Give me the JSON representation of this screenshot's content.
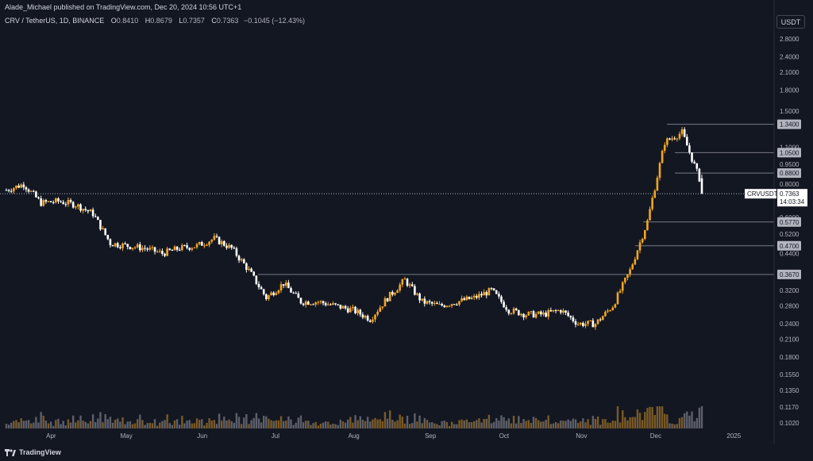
{
  "header": {
    "published_by": "Alade_Michael published on TradingView.com, Dec 20, 2024 10:56 UTC+1"
  },
  "legend": {
    "symbol": "CRV / TetherUS, 1D, BINANCE",
    "open_label": "O",
    "open": "0.8410",
    "high_label": "H",
    "high": "0.8679",
    "low_label": "L",
    "low": "0.7357",
    "close_label": "C",
    "close": "0.7363",
    "change": "−0.1045 (−12.43%)"
  },
  "currency_button": "USDT",
  "footer": {
    "brand": "TradingView"
  },
  "colors": {
    "background": "#131722",
    "up": "#f5a623",
    "down": "#ffffff",
    "level_line": "#787b86",
    "tag_bg": "#b2b5be",
    "current_price_bg": "#ffffff"
  },
  "chart_data": {
    "type": "candlestick",
    "scale": "log",
    "y_tick_labels": [
      "2.8000",
      "2.4000",
      "2.1000",
      "1.8000",
      "1.5000",
      "1.1000",
      "0.9500",
      "0.8000",
      "0.6000",
      "0.5200",
      "0.4400",
      "0.3200",
      "0.2800",
      "0.2400",
      "0.2100",
      "0.1800",
      "0.1550",
      "0.1350",
      "0.1170",
      "0.1020"
    ],
    "x_tick_labels": [
      "Apr",
      "May",
      "Jun",
      "Jul",
      "Aug",
      "Sep",
      "Oct",
      "Nov",
      "Dec",
      "2025"
    ],
    "horizontal_levels": [
      {
        "label": "1.3400",
        "value": 1.34
      },
      {
        "label": "1.0500",
        "value": 1.05
      },
      {
        "label": "0.8800",
        "value": 0.88
      },
      {
        "label": "0.5770",
        "value": 0.577
      },
      {
        "label": "0.4700",
        "value": 0.47
      },
      {
        "label": "0.3670",
        "value": 0.367
      }
    ],
    "current_price": {
      "symbol_tag": "CRVUSDT",
      "price": "0.7363",
      "countdown": "14:03:34",
      "value": 0.7363
    },
    "close_path_weekly": [
      [
        "2024-03-14",
        0.76
      ],
      [
        "2024-03-21",
        0.8
      ],
      [
        "2024-03-28",
        0.68
      ],
      [
        "2024-04-04",
        0.69
      ],
      [
        "2024-04-11",
        0.67
      ],
      [
        "2024-04-18",
        0.62
      ],
      [
        "2024-04-25",
        0.48
      ],
      [
        "2024-05-02",
        0.47
      ],
      [
        "2024-05-09",
        0.46
      ],
      [
        "2024-05-16",
        0.44
      ],
      [
        "2024-05-23",
        0.46
      ],
      [
        "2024-05-30",
        0.47
      ],
      [
        "2024-06-06",
        0.5
      ],
      [
        "2024-06-13",
        0.46
      ],
      [
        "2024-06-20",
        0.38
      ],
      [
        "2024-06-27",
        0.3
      ],
      [
        "2024-07-04",
        0.34
      ],
      [
        "2024-07-11",
        0.29
      ],
      [
        "2024-07-18",
        0.29
      ],
      [
        "2024-07-25",
        0.28
      ],
      [
        "2024-08-01",
        0.27
      ],
      [
        "2024-08-08",
        0.25
      ],
      [
        "2024-08-15",
        0.3
      ],
      [
        "2024-08-22",
        0.35
      ],
      [
        "2024-08-29",
        0.29
      ],
      [
        "2024-09-05",
        0.28
      ],
      [
        "2024-09-12",
        0.29
      ],
      [
        "2024-09-19",
        0.3
      ],
      [
        "2024-09-26",
        0.32
      ],
      [
        "2024-10-03",
        0.27
      ],
      [
        "2024-10-10",
        0.26
      ],
      [
        "2024-10-17",
        0.26
      ],
      [
        "2024-10-24",
        0.27
      ],
      [
        "2024-10-31",
        0.24
      ],
      [
        "2024-11-07",
        0.24
      ],
      [
        "2024-11-14",
        0.28
      ],
      [
        "2024-11-21",
        0.38
      ],
      [
        "2024-11-28",
        0.58
      ],
      [
        "2024-12-05",
        1.15
      ],
      [
        "2024-12-12",
        1.25
      ],
      [
        "2024-12-19",
        0.84
      ],
      [
        "2024-12-20",
        0.7363
      ]
    ]
  }
}
